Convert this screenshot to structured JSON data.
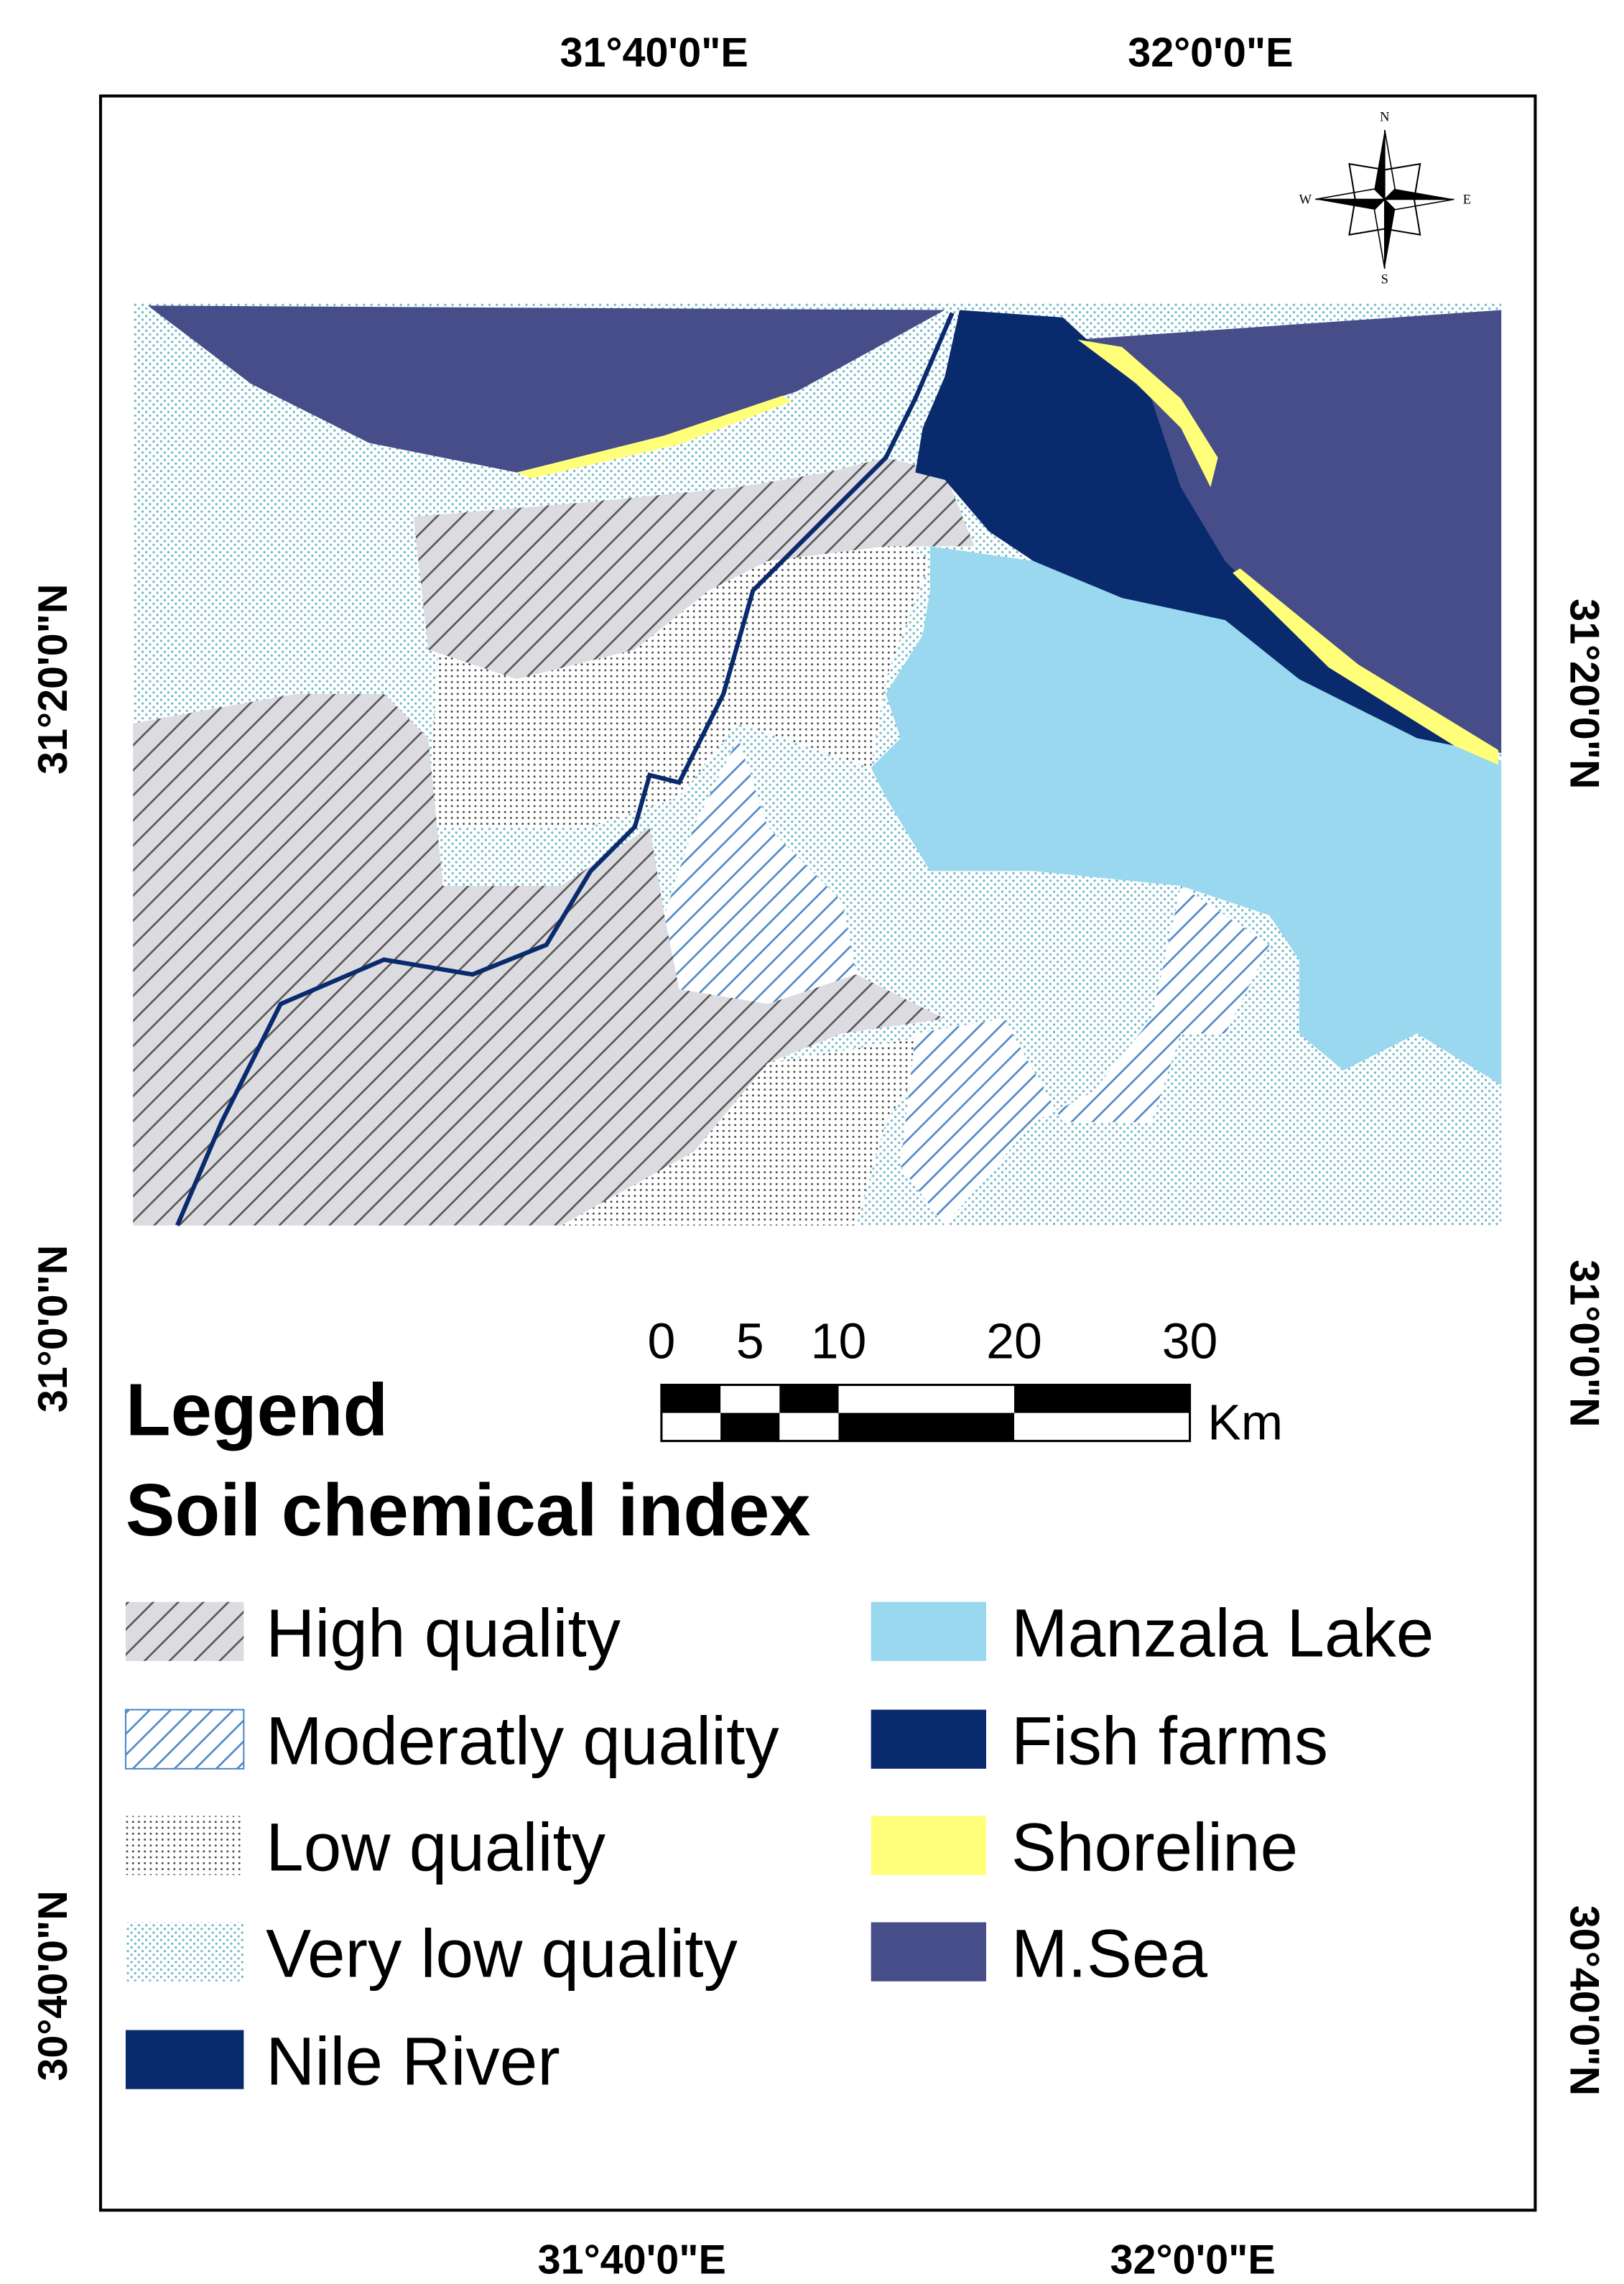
{
  "map": {
    "top_labels": [
      "31°40'0\"E",
      "32°0'0\"E"
    ],
    "bottom_labels": [
      "31°40'0\"E",
      "32°0'0\"E"
    ],
    "left_labels": [
      "31°20'0\"N",
      "31°0'0\"N",
      "30°40'0\"N"
    ],
    "right_labels": [
      "31°20'0\"N",
      "31°0'0\"N",
      "30°40'0\"N"
    ],
    "compass": {
      "n": "N",
      "s": "S",
      "e": "E",
      "w": "W"
    },
    "scale_bar": {
      "labels": [
        "0",
        "5",
        "10",
        "20",
        "30"
      ],
      "unit": "Km"
    },
    "legend": {
      "title": "Legend",
      "subtitle": "Soil chemical index",
      "items": [
        "High quality",
        "Moderatly quality",
        "Low quality",
        "Very low quality",
        "Nile River",
        "Manzala Lake",
        "Fish farms",
        "Shoreline",
        "M.Sea"
      ]
    }
  }
}
